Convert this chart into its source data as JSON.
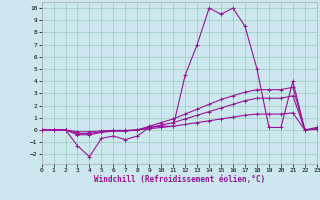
{
  "xlabel": "Windchill (Refroidissement éolien,°C)",
  "bg_color": "#cce8ee",
  "line_color": "#991199",
  "grid_color": "#99ccbb",
  "xlim": [
    0,
    23
  ],
  "ylim": [
    -2.8,
    10.5
  ],
  "xticks": [
    0,
    1,
    2,
    3,
    4,
    5,
    6,
    7,
    8,
    9,
    10,
    11,
    12,
    13,
    14,
    15,
    16,
    17,
    18,
    19,
    20,
    21,
    22,
    23
  ],
  "yticks": [
    -2,
    -1,
    0,
    1,
    2,
    3,
    4,
    5,
    6,
    7,
    8,
    9,
    10
  ],
  "series": [
    {
      "x": [
        0,
        1,
        2,
        3,
        4,
        5,
        6,
        7,
        8,
        9,
        10,
        11,
        12,
        13,
        14,
        15,
        16,
        17,
        18,
        19,
        20,
        21,
        22,
        23
      ],
      "y": [
        0.0,
        0.0,
        0.0,
        -1.3,
        -2.2,
        -0.7,
        -0.5,
        -0.8,
        -0.5,
        0.2,
        0.3,
        0.3,
        4.5,
        7.0,
        10.0,
        9.5,
        10.0,
        8.5,
        5.0,
        0.2,
        0.2,
        4.0,
        0.0,
        0.2
      ]
    },
    {
      "x": [
        0,
        1,
        2,
        3,
        4,
        5,
        6,
        7,
        8,
        9,
        10,
        11,
        12,
        13,
        14,
        15,
        16,
        17,
        18,
        19,
        20,
        21,
        22,
        23
      ],
      "y": [
        0.0,
        0.0,
        0.0,
        -0.4,
        -0.4,
        -0.2,
        -0.1,
        -0.1,
        0.0,
        0.3,
        0.6,
        0.9,
        1.3,
        1.7,
        2.1,
        2.5,
        2.8,
        3.1,
        3.3,
        3.3,
        3.3,
        3.5,
        0.0,
        0.1
      ]
    },
    {
      "x": [
        0,
        1,
        2,
        3,
        4,
        5,
        6,
        7,
        8,
        9,
        10,
        11,
        12,
        13,
        14,
        15,
        16,
        17,
        18,
        19,
        20,
        21,
        22,
        23
      ],
      "y": [
        0.0,
        0.0,
        0.0,
        -0.3,
        -0.3,
        -0.15,
        -0.08,
        -0.08,
        0.0,
        0.2,
        0.4,
        0.6,
        0.9,
        1.2,
        1.5,
        1.8,
        2.1,
        2.4,
        2.6,
        2.6,
        2.6,
        2.8,
        0.0,
        0.08
      ]
    },
    {
      "x": [
        0,
        1,
        2,
        3,
        4,
        5,
        6,
        7,
        8,
        9,
        10,
        11,
        12,
        13,
        14,
        15,
        16,
        17,
        18,
        19,
        20,
        21,
        22,
        23
      ],
      "y": [
        0.0,
        0.0,
        0.0,
        -0.15,
        -0.15,
        -0.08,
        -0.04,
        -0.04,
        0.0,
        0.1,
        0.2,
        0.3,
        0.45,
        0.6,
        0.75,
        0.9,
        1.05,
        1.2,
        1.3,
        1.3,
        1.3,
        1.4,
        0.0,
        0.04
      ]
    }
  ]
}
